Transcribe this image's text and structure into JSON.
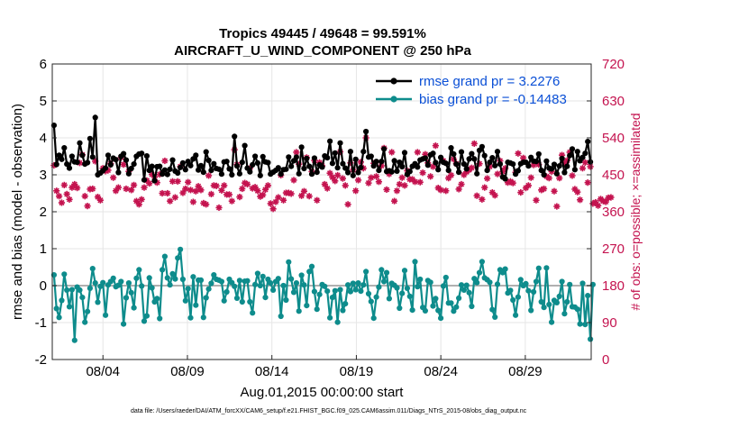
{
  "chart_data": {
    "type": "line",
    "title_line1": "Tropics 49445 / 49648 = 99.591%",
    "title_line2": "AIRCRAFT_U_WIND_COMPONENT @ 250 hPa",
    "ylabel_left": "rmse and bias (model - observation)",
    "ylabel_right": "# of obs: o=possible; ×=assimilated",
    "xlabel": "Aug.01,2015 00:00:00 start",
    "footer": "data file: /Users/raeder/DAI/ATM_forcXX/CAM6_setup/f.e21.FHIST_BGC.f09_025.CAM6assim.011/Diags_NTrS_2015-08/obs_diag_output.nc",
    "xlim": [
      1,
      32.9
    ],
    "ylim_left": [
      -2,
      6
    ],
    "ylim_right": [
      0,
      720
    ],
    "yticks_left": [
      "-2",
      "-1",
      "0",
      "1",
      "2",
      "3",
      "4",
      "5",
      "6"
    ],
    "yticks_right": [
      "0",
      "90",
      "180",
      "270",
      "360",
      "450",
      "540",
      "630",
      "720"
    ],
    "xticks": [
      {
        "value": 4,
        "label": "08/04"
      },
      {
        "value": 9,
        "label": "08/09"
      },
      {
        "value": 14,
        "label": "08/14"
      },
      {
        "value": 19,
        "label": "08/19"
      },
      {
        "value": 24,
        "label": "08/24"
      },
      {
        "value": 29,
        "label": "08/29"
      }
    ],
    "legend": [
      {
        "label": "rmse grand pr = 3.2276",
        "color": "#000000"
      },
      {
        "label": "bias grand pr = -0.14483",
        "color": "#0e8c8c"
      }
    ],
    "colors": {
      "rmse": "#000000",
      "bias": "#0e8c8c",
      "obs": "#c4134f",
      "zero_line": "#b0b0b0",
      "grid": "#e6e6e6"
    },
    "series": {
      "rmse": [
        4.34,
        3.28,
        3.53,
        3.42,
        3.73,
        3.29,
        3.18,
        3.5,
        3.35,
        3.34,
        3.86,
        3.53,
        3.29,
        3.33,
        3.98,
        3.48,
        4.55,
        3.0,
        3.05,
        3.11,
        3.18,
        3.53,
        3.27,
        3.45,
        3.41,
        3.06,
        3.5,
        3.57,
        3.4,
        3.03,
        3.17,
        3.29,
        3.5,
        3.56,
        3.58,
        2.86,
        3.51,
        3.12,
        3.23,
        2.84,
        3.22,
        3.23,
        3.02,
        3.13,
        3.01,
        3.15,
        3.4,
        3.1,
        3.05,
        3.2,
        3.32,
        3.14,
        3.36,
        3.25,
        3.43,
        3.53,
        3.13,
        3.25,
        3.07,
        3.62,
        3.39,
        3.12,
        3.3,
        3.17,
        3.15,
        3.02,
        3.35,
        3.36,
        3.16,
        3.0,
        4.04,
        3.24,
        3.03,
        3.34,
        3.79,
        3.18,
        3.08,
        3.27,
        3.5,
        3.32,
        2.98,
        3.49,
        3.35,
        3.33,
        3.02,
        3.07,
        3.12,
        3.19,
        3.02,
        3.14,
        3.15,
        3.48,
        3.23,
        3.38,
        3.48,
        3.03,
        3.75,
        3.17,
        3.44,
        3.23,
        3.02,
        3.45,
        3.07,
        3.27,
        3.21,
        3.51,
        3.46,
        3.91,
        3.31,
        3.59,
        3.19,
        3.86,
        3.3,
        3.18,
        3.06,
        3.63,
        2.98,
        3.42,
        3.06,
        3.2,
        3.63,
        4.17,
        3.48,
        3.5,
        3.24,
        3.36,
        3.12,
        3.36,
        3.7,
        3.09,
        3.11,
        3.08,
        3.38,
        3.1,
        3.34,
        3.22,
        3.6,
        3.01,
        3.09,
        3.23,
        3.3,
        3.21,
        3.4,
        3.43,
        3.45,
        3.26,
        3.54,
        3.58,
        3.33,
        3.14,
        3.47,
        3.34,
        3.31,
        3.12,
        3.73,
        3.56,
        3.29,
        3.07,
        3.62,
        3.29,
        3.16,
        3.43,
        3.57,
        3.43,
        3.03,
        3.66,
        3.76,
        3.52,
        3.12,
        3.34,
        3.46,
        3.25,
        3.63,
        3.29,
        2.94,
        2.89,
        3.34,
        3.32,
        3.29,
        3.02,
        3.11,
        3.3,
        3.34,
        3.34,
        3.24,
        3.47,
        3.37,
        3.36,
        3.56,
        3.12,
        3.0,
        3.37,
        3.18,
        3.16,
        3.28,
        3.03,
        3.24,
        3.44,
        3.06,
        3.23,
        3.52,
        3.7,
        3.14,
        3.63,
        3.38,
        3.47,
        3.58,
        3.9,
        3.35
      ],
      "bias": [
        0.29,
        -0.62,
        -0.86,
        -0.4,
        0.31,
        -0.12,
        -0.57,
        -0.11,
        -1.48,
        -0.04,
        -0.12,
        -0.32,
        -0.99,
        -0.7,
        -0.07,
        0.46,
        0.07,
        -0.45,
        -0.02,
        0.08,
        -0.8,
        0.02,
        0.11,
        0.2,
        -0.03,
        0.01,
        0.11,
        -1.04,
        -0.33,
        0.07,
        -0.19,
        -0.6,
        0.2,
        0.43,
        -0.01,
        -0.96,
        -0.82,
        0.21,
        -0.06,
        -0.44,
        -0.35,
        -0.89,
        0.43,
        0.79,
        0.21,
        0.02,
        0.32,
        0.18,
        0.75,
        0.98,
        0.17,
        -0.41,
        -0.08,
        -0.87,
        0.24,
        -0.53,
        0.15,
        0.15,
        -0.86,
        -0.33,
        -0.09,
        0.06,
        0.29,
        0.17,
        0.15,
        0.11,
        -0.41,
        -0.17,
        0.17,
        0.08,
        -0.02,
        -0.34,
        0.14,
        -0.44,
        0.12,
        0.13,
        -0.44,
        -0.74,
        0.03,
        0.33,
        0.0,
        0.25,
        -0.32,
        0.17,
        0.07,
        -0.12,
        0.11,
        0.19,
        -0.83,
        0.0,
        -0.39,
        0.64,
        0.18,
        -0.18,
        0.07,
        -0.69,
        0.28,
        0.02,
        -0.54,
        0.38,
        0.52,
        -0.16,
        -0.64,
        -0.24,
        0.03,
        -0.02,
        -0.15,
        -0.87,
        -0.32,
        -0.14,
        -0.99,
        -0.11,
        -0.67,
        -0.49,
        0.02,
        -0.16,
        0.06,
        -0.11,
        0.07,
        -0.15,
        0.02,
        0.38,
        -0.22,
        -0.43,
        -0.88,
        -0.31,
        -0.04,
        0.43,
        0.11,
        0.35,
        -0.35,
        0.06,
        0.01,
        -0.06,
        -0.61,
        -0.21,
        0.41,
        -0.07,
        -0.29,
        -0.66,
        0.65,
        -0.03,
        0.17,
        -0.59,
        -0.68,
        0.14,
        0.09,
        -0.55,
        -0.35,
        -0.67,
        -0.88,
        -0.01,
        0.22,
        -0.47,
        -0.47,
        -0.69,
        -0.58,
        -0.34,
        0.02,
        -0.12,
        0.01,
        -0.19,
        -0.56,
        0.19,
        0.08,
        0.35,
        0.65,
        0.21,
        0.16,
        0.09,
        -0.65,
        -0.85,
        0.04,
        0.43,
        0.35,
        0.45,
        -0.2,
        -0.13,
        -0.39,
        -0.8,
        -0.31,
        0.16,
        0.0,
        0.05,
        -0.14,
        -0.67,
        -0.17,
        0.11,
        0.47,
        -0.44,
        -0.59,
        0.48,
        -0.51,
        -0.99,
        -0.4,
        -0.46,
        -0.29,
        0.11,
        -0.76,
        -0.44,
        0.03,
        -0.57,
        -0.58,
        -0.64,
        -1.04,
        0.06,
        -1.05,
        -0.27,
        -1.45,
        0.03
      ],
      "obs": [
        473,
        411,
        398,
        382,
        425,
        403,
        390,
        419,
        427,
        418,
        479,
        499,
        398,
        374,
        415,
        416,
        483,
        396,
        388,
        466,
        459,
        461,
        477,
        443,
        411,
        419,
        492,
        475,
        416,
        458,
        413,
        425,
        386,
        378,
        390,
        419,
        436,
        429,
        451,
        444,
        431,
        451,
        405,
        484,
        405,
        386,
        434,
        395,
        434,
        470,
        406,
        416,
        432,
        413,
        384,
        410,
        422,
        413,
        381,
        378,
        448,
        403,
        424,
        423,
        370,
        412,
        424,
        402,
        402,
        386,
        511,
        475,
        396,
        416,
        430,
        427,
        466,
        417,
        420,
        411,
        397,
        401,
        414,
        424,
        380,
        367,
        384,
        395,
        449,
        388,
        406,
        406,
        404,
        437,
        505,
        476,
        399,
        410,
        492,
        398,
        458,
        485,
        388,
        480,
        472,
        427,
        417,
        454,
        444,
        435,
        449,
        506,
        441,
        424,
        378,
        479,
        462,
        411,
        437,
        481,
        466,
        540,
        430,
        443,
        478,
        446,
        433,
        472,
        515,
        414,
        452,
        505,
        386,
        411,
        427,
        443,
        424,
        460,
        439,
        439,
        433,
        505,
        432,
        455,
        500,
        479,
        446,
        470,
        521,
        418,
        413,
        484,
        411,
        442,
        449,
        488,
        477,
        415,
        427,
        450,
        457,
        462,
        467,
        526,
        399,
        477,
        390,
        419,
        441,
        470,
        407,
        400,
        452,
        484,
        458,
        466,
        431,
        434,
        430,
        456,
        502,
        407,
        491,
        418,
        424,
        443,
        474,
        388,
        475,
        413,
        416,
        446,
        442,
        458,
        410,
        373,
        442,
        498,
        479,
        485,
        505,
        448,
        415,
        408,
        389,
        466,
        480,
        431,
        470,
        380,
        383,
        375,
        391,
        386,
        384,
        394,
        395
      ]
    }
  }
}
